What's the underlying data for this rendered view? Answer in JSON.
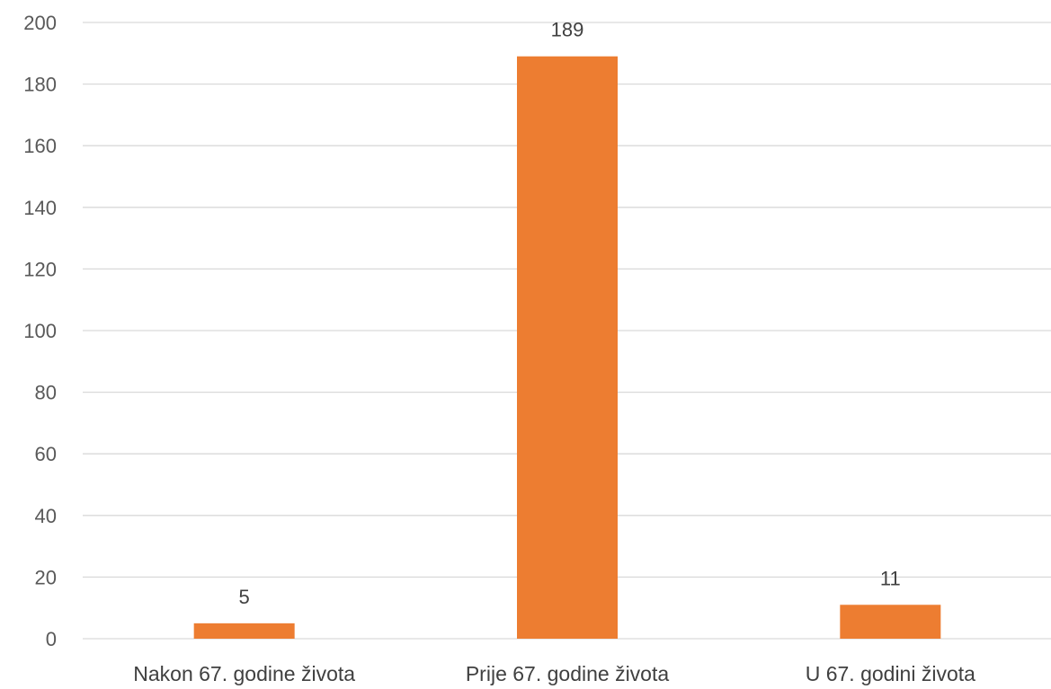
{
  "chart_data": {
    "type": "bar",
    "categories": [
      "Nakon 67. godine života",
      "Prije 67. godine života",
      "U 67. godini života"
    ],
    "values": [
      5,
      189,
      11
    ],
    "data_labels": [
      "5",
      "189",
      "11"
    ],
    "title": "",
    "xlabel": "",
    "ylabel": "",
    "ylim": [
      0,
      200
    ],
    "yticks": [
      0,
      20,
      40,
      60,
      80,
      100,
      120,
      140,
      160,
      180,
      200
    ],
    "grid": true,
    "legend": "none",
    "bar_color": "#ED7D31",
    "grid_color": "#D9D9D9"
  }
}
